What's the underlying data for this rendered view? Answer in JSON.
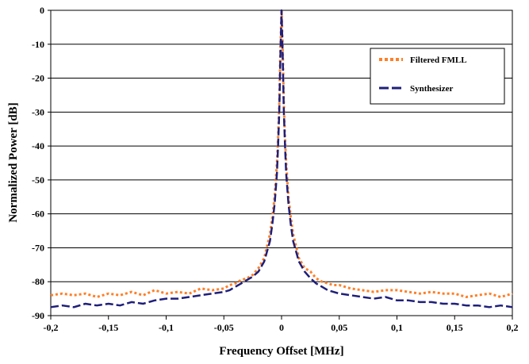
{
  "chart_data": {
    "type": "line",
    "title": "",
    "xlabel": "Frequency Offset [MHz]",
    "ylabel": "Normalized Power [dB]",
    "xlim": [
      -0.2,
      0.2
    ],
    "ylim": [
      -90,
      0
    ],
    "x_ticks": [
      -0.2,
      -0.15,
      -0.1,
      -0.05,
      0,
      0.05,
      0.1,
      0.15,
      0.2
    ],
    "x_tick_labels": [
      "-0,2",
      "-0,15",
      "-0,1",
      "-0,05",
      "0",
      "0,05",
      "0,1",
      "0,15",
      "0,2"
    ],
    "y_ticks": [
      0,
      -10,
      -20,
      -30,
      -40,
      -50,
      -60,
      -70,
      -80,
      -90
    ],
    "y_tick_labels": [
      "0",
      "-10",
      "-20",
      "-30",
      "-40",
      "-50",
      "-60",
      "-70",
      "-80",
      "-90"
    ],
    "grid": "horizontal",
    "legend_position": "top-right",
    "series": [
      {
        "name": "Filtered FMLL",
        "color": "#FF7F27",
        "style": "dotted",
        "x": [
          -0.2,
          -0.19,
          -0.18,
          -0.17,
          -0.16,
          -0.15,
          -0.14,
          -0.13,
          -0.12,
          -0.11,
          -0.1,
          -0.09,
          -0.08,
          -0.07,
          -0.06,
          -0.05,
          -0.045,
          -0.04,
          -0.035,
          -0.03,
          -0.025,
          -0.02,
          -0.015,
          -0.01,
          -0.008,
          -0.006,
          -0.004,
          -0.003,
          -0.002,
          -0.001,
          0,
          0.001,
          0.002,
          0.003,
          0.004,
          0.006,
          0.008,
          0.01,
          0.015,
          0.02,
          0.025,
          0.03,
          0.035,
          0.04,
          0.045,
          0.05,
          0.06,
          0.07,
          0.08,
          0.09,
          0.1,
          0.11,
          0.12,
          0.13,
          0.14,
          0.15,
          0.16,
          0.17,
          0.18,
          0.19,
          0.2
        ],
        "y": [
          -84,
          -83.5,
          -84,
          -83.5,
          -84.5,
          -83.5,
          -84,
          -83,
          -84,
          -82.5,
          -83.5,
          -83,
          -83.5,
          -82,
          -82.5,
          -82,
          -81,
          -80.5,
          -79.5,
          -79,
          -78,
          -76,
          -73,
          -66,
          -61,
          -55,
          -45,
          -38,
          -28,
          -12,
          0,
          -12,
          -28,
          -38,
          -45,
          -55,
          -61,
          -66,
          -73,
          -76,
          -77,
          -79,
          -80,
          -80.5,
          -81,
          -81,
          -82,
          -82.5,
          -83,
          -82.5,
          -82.5,
          -83,
          -83.5,
          -83,
          -83.5,
          -83.5,
          -84.5,
          -84,
          -83.5,
          -84.5,
          -83.5
        ]
      },
      {
        "name": "Synthesizer",
        "color": "#1F1F7A",
        "style": "dashed",
        "x": [
          -0.2,
          -0.19,
          -0.18,
          -0.17,
          -0.16,
          -0.15,
          -0.14,
          -0.13,
          -0.12,
          -0.11,
          -0.1,
          -0.09,
          -0.08,
          -0.07,
          -0.06,
          -0.05,
          -0.045,
          -0.04,
          -0.035,
          -0.03,
          -0.025,
          -0.02,
          -0.015,
          -0.01,
          -0.008,
          -0.006,
          -0.004,
          -0.003,
          -0.002,
          -0.001,
          0,
          0.001,
          0.002,
          0.003,
          0.004,
          0.006,
          0.008,
          0.01,
          0.015,
          0.02,
          0.025,
          0.03,
          0.035,
          0.04,
          0.045,
          0.05,
          0.06,
          0.07,
          0.08,
          0.09,
          0.1,
          0.11,
          0.12,
          0.13,
          0.14,
          0.15,
          0.16,
          0.17,
          0.18,
          0.19,
          0.2
        ],
        "y": [
          -87.5,
          -87,
          -87.5,
          -86.5,
          -87,
          -86.5,
          -87,
          -86,
          -86.5,
          -85.5,
          -85,
          -85,
          -84.5,
          -84,
          -83.5,
          -83,
          -82.5,
          -81.5,
          -80.5,
          -79.5,
          -78.5,
          -77,
          -74,
          -68,
          -63,
          -57,
          -48,
          -40,
          -30,
          -14,
          0,
          -14,
          -30,
          -40,
          -48,
          -57,
          -63,
          -68,
          -74,
          -77,
          -79,
          -80.5,
          -81.5,
          -82.5,
          -83,
          -83.5,
          -84,
          -84.5,
          -85,
          -84.5,
          -85.5,
          -85.5,
          -86,
          -86,
          -86.5,
          -86.5,
          -87,
          -87,
          -87.5,
          -87,
          -87.5
        ]
      }
    ]
  }
}
